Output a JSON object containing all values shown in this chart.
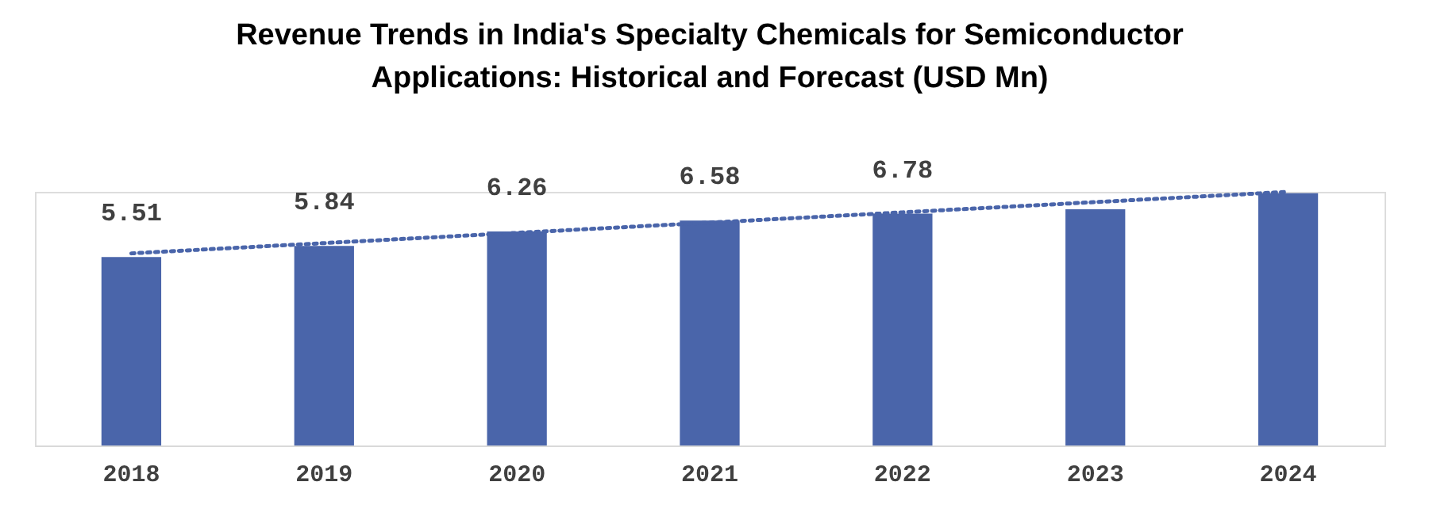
{
  "chart_data": {
    "type": "bar",
    "title": [
      "Revenue Trends in India's Specialty Chemicals for Semiconductor",
      "Applications: Historical and Forecast (USD Mn)"
    ],
    "categories": [
      "2018",
      "2019",
      "2020",
      "2021",
      "2022",
      "2023",
      "2024"
    ],
    "series": [
      {
        "color": "#4a65aa",
        "values": [
          5.51,
          5.84,
          6.26,
          6.58,
          6.78,
          6.91,
          7.38
        ],
        "value_labels": [
          "5.51",
          "5.84",
          "6.26",
          "6.58",
          "6.78",
          null,
          null
        ]
      },
      {
        "type": "line",
        "color": "#4a65aa",
        "line_style": "dotted",
        "values": [
          5.62,
          5.92,
          6.22,
          6.52,
          6.82,
          7.12,
          7.42
        ]
      }
    ]
  }
}
